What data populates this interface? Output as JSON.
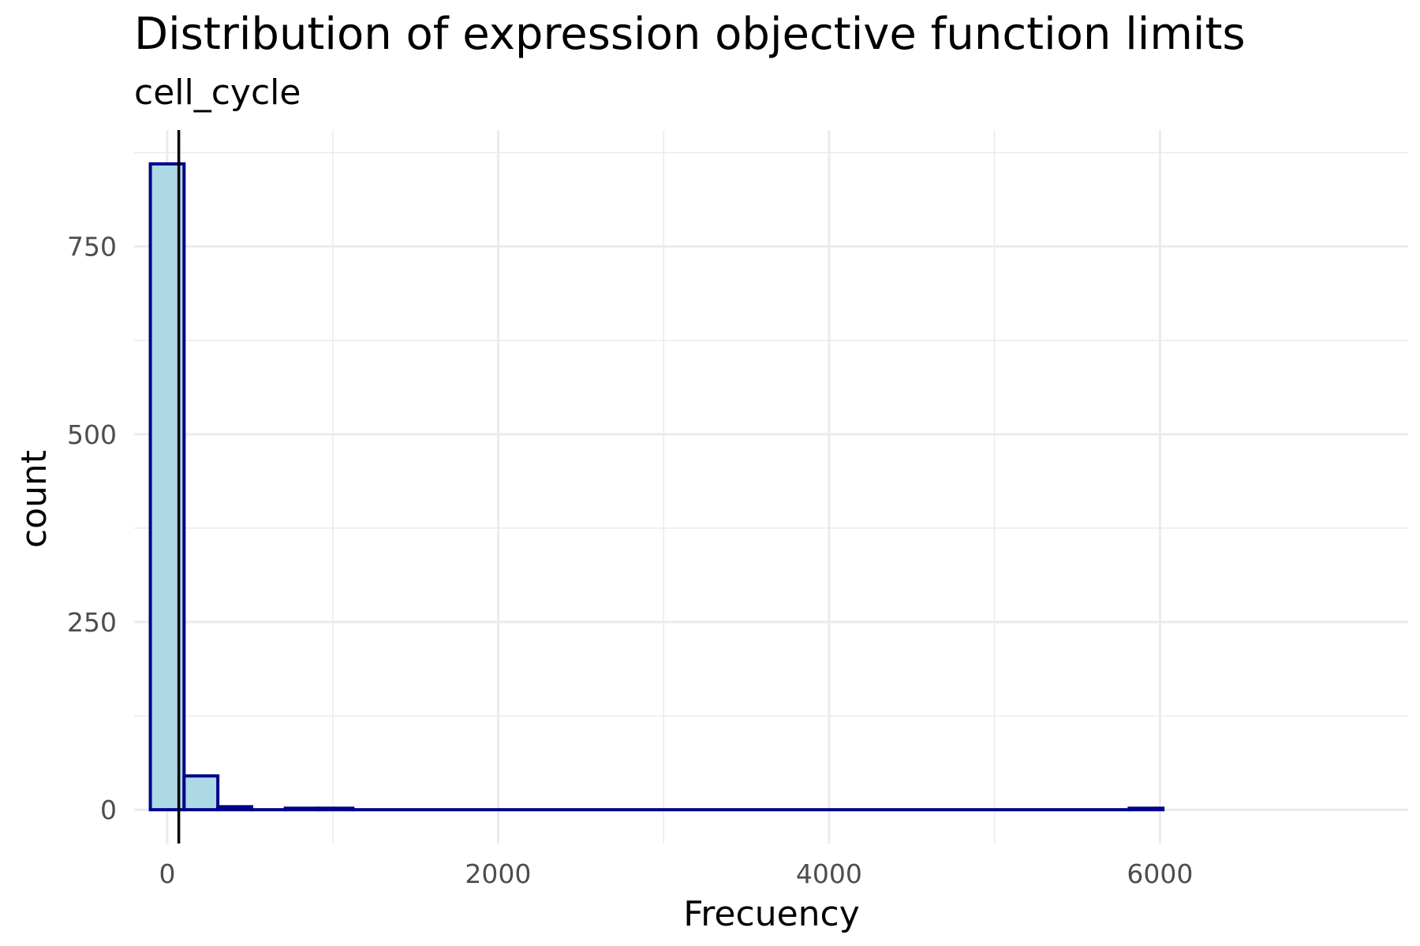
{
  "chart_data": {
    "type": "bar",
    "title": "Distribution of expression objective function limits",
    "subtitle": "cell_cycle",
    "xlabel": "Frecuency",
    "ylabel": "count",
    "xlim": [
      -200,
      7500
    ],
    "ylim": [
      -45,
      905
    ],
    "x_ticks": [
      0,
      2000,
      4000,
      6000
    ],
    "x_tick_labels": [
      "0",
      "2000",
      "4000",
      "6000"
    ],
    "x_minor_ticks": [
      1000,
      3000,
      5000
    ],
    "y_ticks": [
      0,
      250,
      500,
      750
    ],
    "y_tick_labels": [
      "0",
      "250",
      "500",
      "750"
    ],
    "y_minor_ticks": [
      125,
      375,
      625,
      875
    ],
    "grid": true,
    "vline_x": 70,
    "bin_width": 204,
    "bins": [
      {
        "x0": -102,
        "x1": 102,
        "count": 860
      },
      {
        "x0": 102,
        "x1": 306,
        "count": 45
      },
      {
        "x0": 306,
        "x1": 510,
        "count": 4
      },
      {
        "x0": 510,
        "x1": 714,
        "count": 0
      },
      {
        "x0": 714,
        "x1": 918,
        "count": 2
      },
      {
        "x0": 918,
        "x1": 1122,
        "count": 2
      },
      {
        "x0": 1122,
        "x1": 5814,
        "count": 0
      },
      {
        "x0": 5814,
        "x1": 6018,
        "count": 2
      }
    ],
    "colors": {
      "fill": "#add8e6",
      "outline": "#00008b",
      "vline": "#000000",
      "grid": "#ebebeb",
      "tick_text": "#4d4d4d"
    }
  }
}
